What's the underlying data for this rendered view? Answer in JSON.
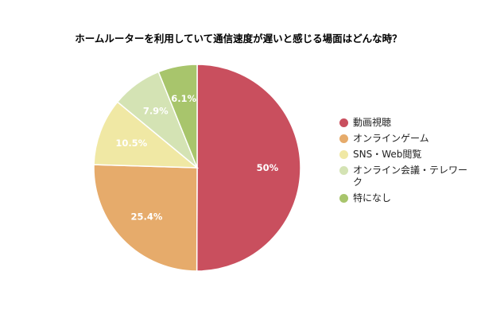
{
  "chart_data": {
    "type": "pie",
    "title": "ホームルーターを利用していて通信速度が遅いと感じる場面はどんな時？",
    "categories": [
      "動画視聴",
      "オンラインゲーム",
      "SNS・Web閲覧",
      "オンライン会議・テレワーク",
      "特になし"
    ],
    "values": [
      50,
      25.4,
      10.5,
      7.9,
      6.1
    ],
    "value_labels": [
      "50%",
      "25.4%",
      "10.5%",
      "7.9%",
      "6.1%"
    ],
    "colors": [
      "#c94f5e",
      "#e6ab6b",
      "#f0e8a4",
      "#d4e3b4",
      "#a8c56c"
    ],
    "legend_position": "right",
    "start_angle": "12 o'clock",
    "direction": "clockwise"
  }
}
